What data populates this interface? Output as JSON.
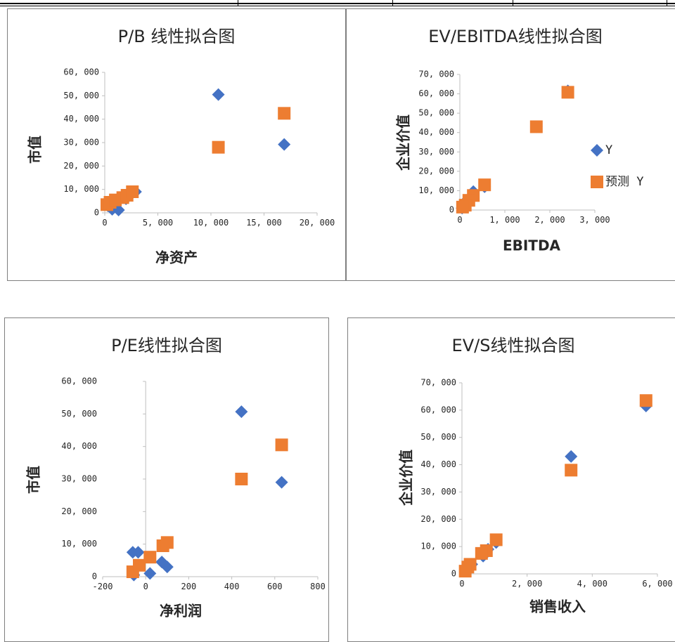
{
  "colors": {
    "series_y": "#4472C4",
    "series_pred": "#ED7D31",
    "axis": "#BFBFBF",
    "text": "#262626"
  },
  "chart_data": [
    {
      "id": "pb",
      "type": "scatter",
      "title": "P/B 线性拟合图",
      "xlabel": "净资产",
      "ylabel": "市值",
      "xlim": [
        0,
        20000
      ],
      "ylim": [
        0,
        60000
      ],
      "xticks": [
        "0",
        "5, 000",
        "10, 000",
        "15, 000",
        "20, 000"
      ],
      "yticks": [
        "0",
        "10, 000",
        "20, 000",
        "30, 000",
        "40, 000",
        "50, 000",
        "60, 000"
      ],
      "legend": null,
      "series": [
        {
          "marker": "diamond",
          "points": [
            [
              10700,
              50500
            ],
            [
              16900,
              29200
            ],
            [
              300,
              3000
            ],
            [
              700,
              1500
            ],
            [
              1300,
              1200
            ],
            [
              2000,
              6000
            ],
            [
              2500,
              8000
            ],
            [
              2900,
              9000
            ]
          ]
        },
        {
          "marker": "square",
          "points": [
            [
              10700,
              28000
            ],
            [
              16900,
              42500
            ],
            [
              200,
              3500
            ],
            [
              500,
              4500
            ],
            [
              1000,
              5500
            ],
            [
              1700,
              6500
            ],
            [
              2100,
              7500
            ],
            [
              2600,
              9000
            ]
          ]
        }
      ]
    },
    {
      "id": "ev_ebitda",
      "type": "scatter",
      "title": "EV/EBITDA线性拟合图",
      "xlabel": "EBITDA",
      "ylabel": "企业价值",
      "xlim": [
        0,
        3000
      ],
      "ylim": [
        0,
        70000
      ],
      "xticks": [
        "0",
        "1, 000",
        "2, 000",
        "3, 000"
      ],
      "yticks": [
        "0",
        "10, 000",
        "20, 000",
        "30, 000",
        "40, 000",
        "50, 000",
        "60, 000",
        "70, 000"
      ],
      "legend": [
        "Y",
        "预测 Y"
      ],
      "series": [
        {
          "marker": "diamond",
          "points": [
            [
              2400,
              61500
            ],
            [
              1700,
              43000
            ],
            [
              550,
              12000
            ],
            [
              300,
              9500
            ],
            [
              150,
              5000
            ],
            [
              80,
              2000
            ],
            [
              50,
              1000
            ]
          ]
        },
        {
          "marker": "square",
          "points": [
            [
              2400,
              60800
            ],
            [
              1700,
              43000
            ],
            [
              550,
              13000
            ],
            [
              300,
              7500
            ],
            [
              200,
              5000
            ],
            [
              120,
              2500
            ],
            [
              60,
              1500
            ]
          ]
        }
      ]
    },
    {
      "id": "pe",
      "type": "scatter",
      "title": "P/E线性拟合图",
      "xlabel": "净利润",
      "ylabel": "市值",
      "xlim": [
        -200,
        800
      ],
      "ylim": [
        0,
        60000
      ],
      "xticks": [
        "-200",
        "0",
        "200",
        "400",
        "600",
        "800"
      ],
      "yticks": [
        "0",
        "10, 000",
        "20, 000",
        "30, 000",
        "40, 000",
        "50, 000",
        "60, 000"
      ],
      "legend": null,
      "series": [
        {
          "marker": "diamond",
          "points": [
            [
              445,
              50700
            ],
            [
              632,
              29000
            ],
            [
              -60,
              7500
            ],
            [
              -35,
              7500
            ],
            [
              75,
              4500
            ],
            [
              100,
              3000
            ],
            [
              20,
              1000
            ],
            [
              -55,
              500
            ]
          ]
        },
        {
          "marker": "square",
          "points": [
            [
              445,
              30000
            ],
            [
              632,
              40500
            ],
            [
              -60,
              1500
            ],
            [
              -30,
              3500
            ],
            [
              20,
              6000
            ],
            [
              80,
              9500
            ],
            [
              100,
              10500
            ]
          ]
        }
      ]
    },
    {
      "id": "ev_s",
      "type": "scatter",
      "title": "EV/S线性拟合图",
      "xlabel": "销售收入",
      "ylabel": "企业价值",
      "xlim": [
        0,
        6000
      ],
      "ylim": [
        0,
        70000
      ],
      "xticks": [
        "0",
        "2, 000",
        "4, 000",
        "6, 000"
      ],
      "yticks": [
        "0",
        "10, 000",
        "20, 000",
        "30, 000",
        "40, 000",
        "50, 000",
        "60, 000",
        "70, 000"
      ],
      "legend": null,
      "series": [
        {
          "marker": "diamond",
          "points": [
            [
              5650,
              61500
            ],
            [
              3350,
              43000
            ],
            [
              1050,
              11500
            ],
            [
              800,
              9000
            ],
            [
              650,
              6500
            ],
            [
              300,
              3500
            ],
            [
              200,
              2500
            ],
            [
              120,
              1500
            ]
          ]
        },
        {
          "marker": "square",
          "points": [
            [
              5650,
              63500
            ],
            [
              3350,
              38000
            ],
            [
              1050,
              12500
            ],
            [
              750,
              8500
            ],
            [
              600,
              7500
            ],
            [
              250,
              3500
            ],
            [
              180,
              2500
            ],
            [
              100,
              1000
            ]
          ]
        }
      ]
    }
  ]
}
